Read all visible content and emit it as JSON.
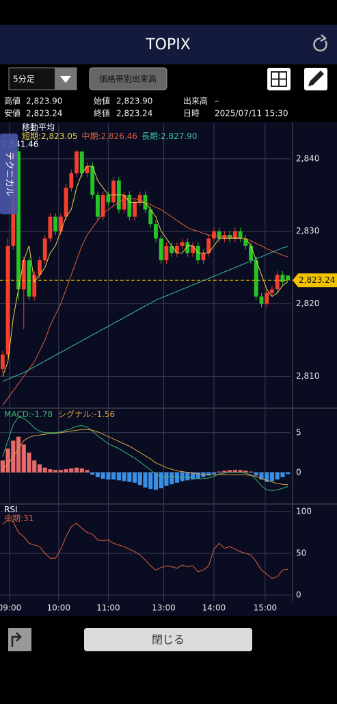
{
  "header": {
    "title": "TOPIX"
  },
  "toolbar": {
    "interval": "5分足",
    "volume_button": "価格帯別出来高"
  },
  "quote": {
    "high_label": "高値",
    "high": "2,823.90",
    "open_label": "始値",
    "open": "2,823.90",
    "volume_label": "出来高",
    "volume": "–",
    "low_label": "安値",
    "low": "2,823.24",
    "close_label": "終値",
    "close": "2,823.24",
    "datetime_label": "日時",
    "datetime": "2025/07/11 15:30"
  },
  "side_tab": "テクニカル",
  "close_button": "閉じる",
  "chart_data": [
    {
      "type": "candlestick",
      "title": "移動平均",
      "xlim": [
        -0.5,
        54.5
      ],
      "xticks": [
        {
          "value": 1.3,
          "label": "09:00"
        },
        {
          "value": 10.6,
          "label": "10:00"
        },
        {
          "value": 20,
          "label": "11:00"
        },
        {
          "value": 30.5,
          "label": "13:00"
        },
        {
          "value": 40,
          "label": "14:00"
        },
        {
          "value": 49.7,
          "label": "15:00"
        }
      ],
      "ylim": [
        2805.7,
        2844.9
      ],
      "yticks": [
        {
          "value": 2810,
          "label": "2,810"
        },
        {
          "value": 2820,
          "label": "2,820"
        },
        {
          "value": 2830,
          "label": "2,830"
        },
        {
          "value": 2840,
          "label": "2,840"
        }
      ],
      "grid": true,
      "up_color": "#f2402c",
      "down_color": "#26c526",
      "ohlc": [
        [
          2811,
          2813.5,
          2810.5,
          2813
        ],
        [
          2813,
          2829,
          2812.5,
          2828
        ],
        [
          2828,
          2841.5,
          2827.5,
          2841
        ],
        [
          2841,
          2841.46,
          2820.5,
          2822
        ],
        [
          2822,
          2826.5,
          2816.5,
          2826
        ],
        [
          2826,
          2826.5,
          2820.5,
          2821
        ],
        [
          2821,
          2824.5,
          2820.5,
          2824
        ],
        [
          2824,
          2826.5,
          2823.5,
          2826
        ],
        [
          2826,
          2829.5,
          2825.5,
          2829
        ],
        [
          2829,
          2832.5,
          2828.5,
          2832
        ],
        [
          2832,
          2832.5,
          2829.5,
          2830
        ],
        [
          2830,
          2832.5,
          2829.5,
          2832
        ],
        [
          2832,
          2836.5,
          2831.5,
          2836
        ],
        [
          2836,
          2838.5,
          2835.5,
          2838
        ],
        [
          2838,
          2841.2,
          2837.5,
          2841
        ],
        [
          2841,
          2841,
          2837.5,
          2838
        ],
        [
          2838,
          2839.5,
          2837.5,
          2839
        ],
        [
          2839,
          2839.5,
          2834.5,
          2835
        ],
        [
          2835,
          2835.5,
          2831.5,
          2832
        ],
        [
          2832,
          2835.5,
          2831.5,
          2835
        ],
        [
          2835,
          2835.5,
          2833.5,
          2834
        ],
        [
          2834,
          2837.5,
          2833.5,
          2837
        ],
        [
          2837,
          2837.5,
          2832.5,
          2833
        ],
        [
          2833,
          2835.5,
          2832.5,
          2835
        ],
        [
          2835,
          2835.5,
          2831.5,
          2832
        ],
        [
          2832,
          2834.5,
          2831.5,
          2834
        ],
        [
          2834,
          2835.5,
          2833.5,
          2835
        ],
        [
          2835,
          2835.5,
          2832.5,
          2833
        ],
        [
          2833,
          2833.5,
          2830.5,
          2831
        ],
        [
          2831,
          2831.5,
          2828.5,
          2829
        ],
        [
          2829,
          2829.5,
          2825.5,
          2826
        ],
        [
          2826,
          2828.5,
          2825.5,
          2828
        ],
        [
          2828,
          2828.5,
          2826.5,
          2827
        ],
        [
          2827,
          2828.5,
          2826.5,
          2828
        ],
        [
          2828,
          2829,
          2827.5,
          2828.5
        ],
        [
          2828.5,
          2829,
          2826.5,
          2827
        ],
        [
          2827,
          2828.5,
          2826.5,
          2828
        ],
        [
          2828,
          2828.5,
          2825.5,
          2826
        ],
        [
          2826,
          2827.5,
          2825.5,
          2827
        ],
        [
          2827,
          2829.5,
          2826.5,
          2829
        ],
        [
          2829,
          2830.5,
          2828.5,
          2830
        ],
        [
          2830,
          2830.5,
          2828.5,
          2829
        ],
        [
          2829,
          2830,
          2828.5,
          2829.5
        ],
        [
          2829.5,
          2830,
          2828.5,
          2829
        ],
        [
          2829,
          2830.5,
          2828.5,
          2830
        ],
        [
          2830,
          2830.5,
          2828.5,
          2829
        ],
        [
          2829,
          2829.5,
          2827.5,
          2828
        ],
        [
          2828,
          2828.5,
          2825.5,
          2826
        ],
        [
          2826,
          2826.5,
          2820.5,
          2821
        ],
        [
          2821,
          2821.5,
          2819.5,
          2820
        ],
        [
          2820,
          2822,
          2819.5,
          2821.5
        ],
        [
          2821.5,
          2822.5,
          2821,
          2822
        ],
        [
          2822,
          2824.5,
          2821.5,
          2824
        ],
        [
          2824,
          2824.5,
          2822.5,
          2823
        ],
        [
          2823.9,
          2823.9,
          2823.24,
          2823.24
        ]
      ],
      "series": [
        {
          "name": "短期:",
          "color": "#e6d84a",
          "value_label": "2,823.05",
          "values": [
            2810,
            2812,
            2818,
            2822,
            2826,
            2828,
            2823,
            2824,
            2825,
            2827,
            2828,
            2830,
            2832,
            2833,
            2836,
            2838,
            2839,
            2839,
            2837,
            2836,
            2835,
            2835,
            2835,
            2835,
            2834,
            2834,
            2834,
            2834,
            2833,
            2832,
            2830,
            2829,
            2828,
            2827,
            2827,
            2828,
            2828,
            2827,
            2827,
            2827,
            2828,
            2829,
            2829,
            2829,
            2829,
            2829,
            2829,
            2828,
            2826,
            2824,
            2822,
            2821,
            2821.5,
            2822.5,
            2823.05
          ]
        },
        {
          "name": "中期:",
          "color": "#e0603a",
          "value_label": "2,826.46",
          "values": [
            2806,
            2807,
            2808,
            2809,
            2810,
            2811,
            2812,
            2813.5,
            2815,
            2817,
            2818.5,
            2820,
            2822,
            2824,
            2826,
            2828,
            2829.5,
            2830.5,
            2831.5,
            2832.5,
            2833,
            2833.5,
            2834,
            2834.5,
            2834.5,
            2834.5,
            2834.3,
            2834,
            2833.7,
            2833.3,
            2833,
            2832.5,
            2832,
            2831.5,
            2831,
            2830.5,
            2830.2,
            2830,
            2829.7,
            2829.5,
            2829.4,
            2829.3,
            2829.3,
            2829.2,
            2829.2,
            2829.1,
            2829,
            2828.7,
            2828.3,
            2828,
            2827.6,
            2827.3,
            2827,
            2826.7,
            2826.46
          ]
        },
        {
          "name": "長期:",
          "color": "#3fbf9f",
          "value_label": "2,827.90",
          "values": [
            2809.3,
            2809.6,
            2809.9,
            2810.2,
            2810.5,
            2810.9,
            2811.3,
            2811.7,
            2812.1,
            2812.5,
            2812.9,
            2813.3,
            2813.7,
            2814.1,
            2814.5,
            2814.9,
            2815.3,
            2815.7,
            2816.1,
            2816.5,
            2816.9,
            2817.3,
            2817.7,
            2818.1,
            2818.5,
            2818.9,
            2819.3,
            2819.7,
            2820.1,
            2820.5,
            2820.8,
            2821.1,
            2821.4,
            2821.7,
            2822.0,
            2822.3,
            2822.6,
            2822.9,
            2823.2,
            2823.5,
            2823.8,
            2824.1,
            2824.4,
            2824.7,
            2825.0,
            2825.3,
            2825.6,
            2825.9,
            2826.2,
            2826.5,
            2826.8,
            2827.1,
            2827.4,
            2827.7,
            2827.9
          ]
        }
      ],
      "last_price": {
        "value": 2823.24,
        "label": "2,823.24"
      },
      "max_marker": {
        "value": 2841.46,
        "label": "2,841.46"
      }
    },
    {
      "type": "macd",
      "ylim": [
        -3.9,
        8.0
      ],
      "yticks": [
        0,
        5
      ],
      "grid": true,
      "histogram": {
        "up_color": "#e86a6a",
        "down_color": "#3a8ee6",
        "values": [
          1.5,
          3,
          4,
          4.5,
          3.5,
          2.5,
          1.5,
          1,
          0.6,
          0.4,
          0.3,
          0.3,
          0.4,
          0.5,
          0.6,
          0.5,
          0.3,
          -0.3,
          -0.6,
          -0.8,
          -0.9,
          -0.9,
          -1,
          -1.1,
          -1.2,
          -1.3,
          -1.6,
          -1.9,
          -2.1,
          -2.2,
          -2,
          -1.7,
          -1.5,
          -1.3,
          -1.1,
          -1,
          -0.9,
          -0.8,
          -0.6,
          -0.4,
          -0.2,
          0.1,
          0.2,
          0.3,
          0.3,
          0.3,
          0.2,
          0.1,
          -0.4,
          -0.9,
          -1.2,
          -1.1,
          -0.9,
          -0.6,
          -0.22
        ]
      },
      "series": [
        {
          "name": "MACD:",
          "color": "#3cb371",
          "value_label": "-1.78",
          "values": [
            2,
            4,
            6,
            7,
            6.8,
            6.3,
            5.6,
            5.2,
            5,
            5,
            5,
            5.1,
            5.3,
            5.5,
            5.8,
            5.9,
            5.7,
            5.2,
            4.6,
            4.1,
            3.6,
            3.3,
            3,
            2.6,
            2.2,
            1.8,
            1.3,
            0.8,
            0.3,
            -0.3,
            -0.5,
            -0.5,
            -0.5,
            -0.6,
            -0.6,
            -0.6,
            -0.7,
            -0.8,
            -0.8,
            -0.7,
            -0.5,
            -0.2,
            -0.1,
            0,
            0,
            0,
            -0.1,
            -0.3,
            -0.9,
            -1.7,
            -2.2,
            -2.3,
            -2.2,
            -2,
            -1.78
          ]
        },
        {
          "name": "シグナル:",
          "color": "#d9a441",
          "value_label": "-1.56",
          "values": [
            0.5,
            1,
            2,
            3,
            4,
            4.4,
            4.6,
            4.7,
            4.8,
            4.9,
            4.9,
            5,
            5.1,
            5.2,
            5.3,
            5.4,
            5.4,
            5.3,
            5.1,
            4.8,
            4.5,
            4.2,
            3.9,
            3.6,
            3.3,
            2.9,
            2.5,
            2.1,
            1.7,
            1.2,
            0.9,
            0.6,
            0.4,
            0.2,
            0.1,
            0,
            -0.1,
            -0.2,
            -0.3,
            -0.3,
            -0.3,
            -0.3,
            -0.3,
            -0.3,
            -0.3,
            -0.3,
            -0.3,
            -0.4,
            -0.5,
            -0.8,
            -1,
            -1.2,
            -1.4,
            -1.5,
            -1.56
          ]
        }
      ]
    },
    {
      "type": "line",
      "title": "RSI",
      "ylim": [
        -7.4,
        108.2
      ],
      "yticks": [
        0,
        50,
        100
      ],
      "grid": true,
      "series": [
        {
          "name": "中期:",
          "color": "#e0603a",
          "value_label": "31",
          "values": [
            85,
            90,
            88,
            75,
            70,
            62,
            60,
            58,
            50,
            44,
            44,
            55,
            70,
            82,
            86,
            80,
            75,
            73,
            66,
            65,
            66,
            62,
            60,
            58,
            55,
            52,
            48,
            42,
            35,
            30,
            33,
            35,
            34,
            32,
            36,
            34,
            35,
            28,
            30,
            35,
            55,
            62,
            56,
            58,
            55,
            52,
            50,
            48,
            40,
            30,
            25,
            20,
            22,
            30,
            31
          ]
        }
      ]
    }
  ]
}
